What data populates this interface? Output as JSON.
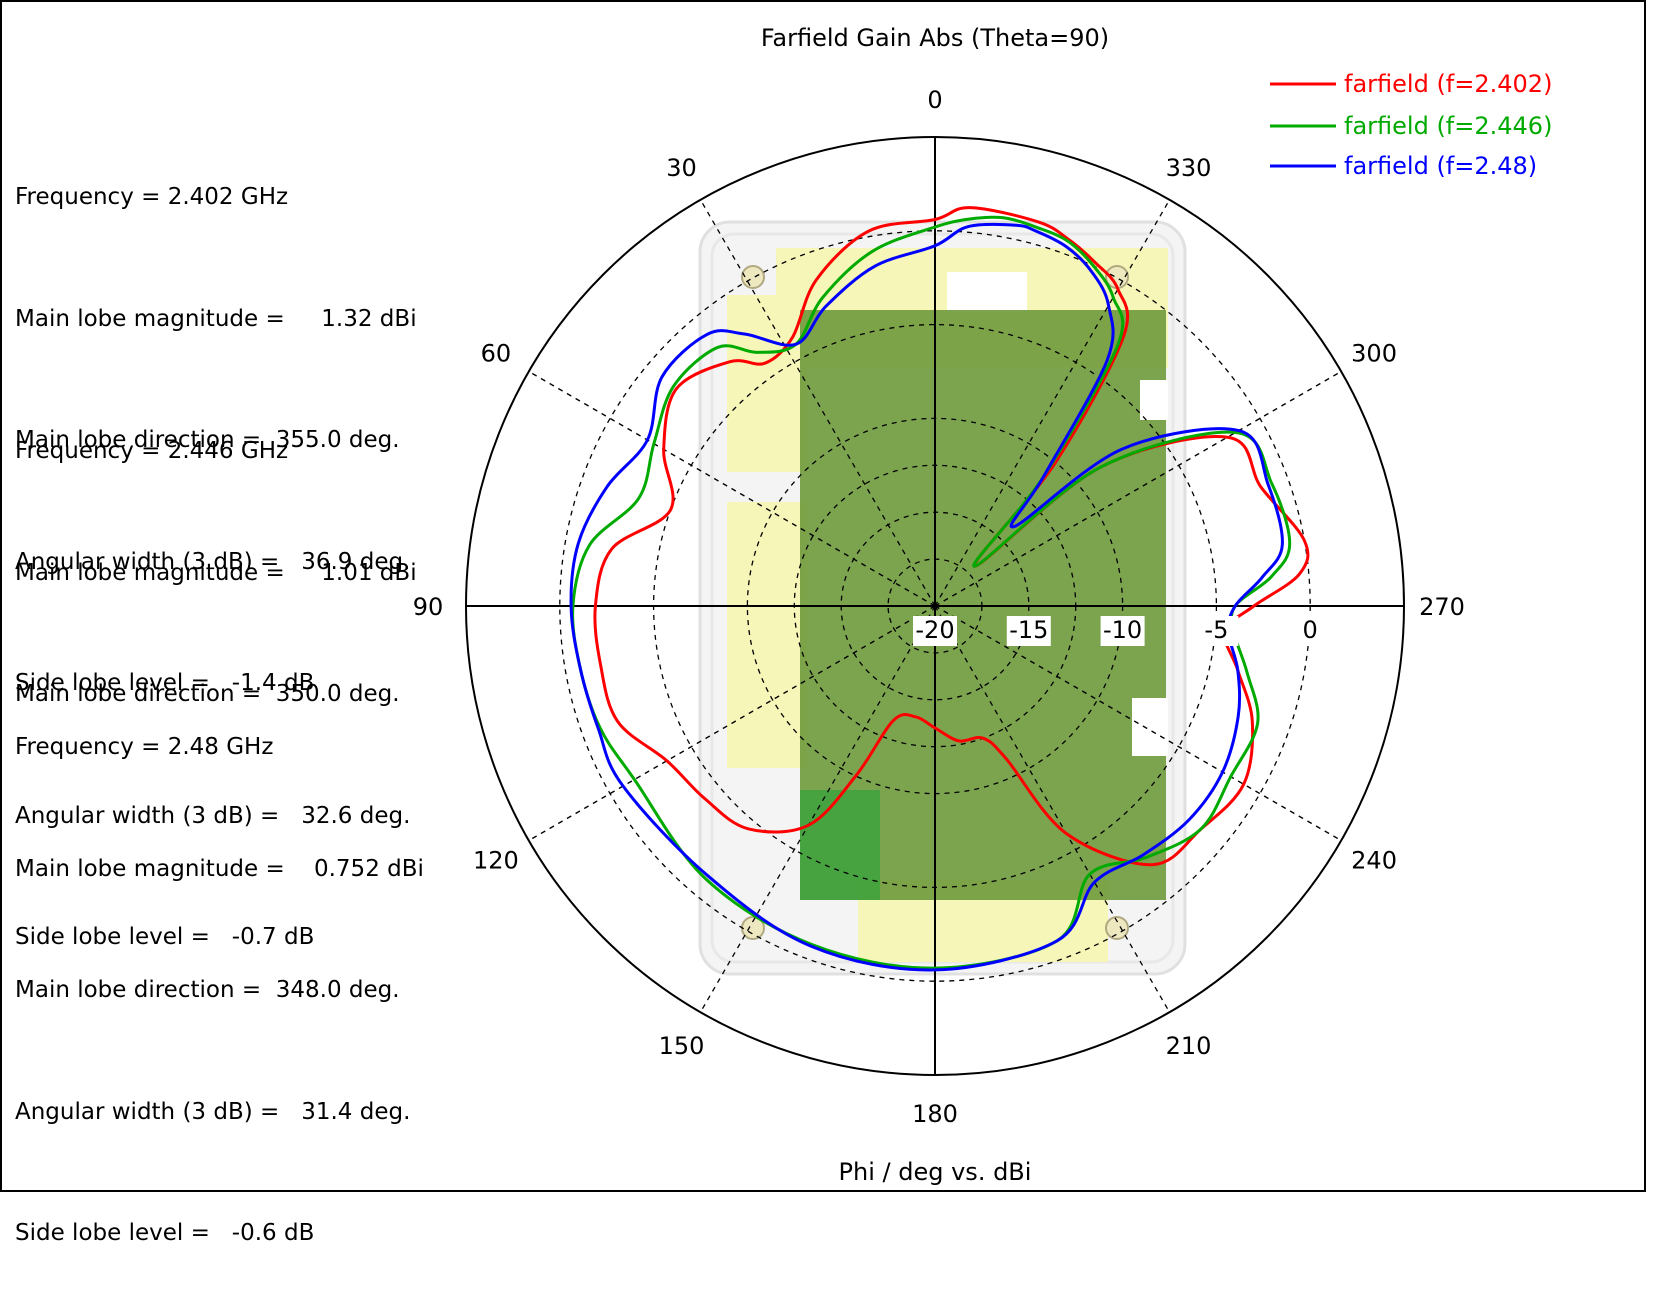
{
  "chart_data": {
    "type": "polar",
    "title": "Farfield Gain Abs (Theta=90)",
    "xlabel": "Phi / deg vs. dBi",
    "radial_range_dBi": [
      -20,
      5
    ],
    "radial_ticks": [
      "-20",
      "-15",
      "-10",
      "-5",
      "0"
    ],
    "angle_ticks": [
      "0",
      "30",
      "60",
      "90",
      "120",
      "150",
      "180",
      "210",
      "240",
      "270",
      "300",
      "330"
    ],
    "angle_direction": "counter-clockwise on screen, 0 at top",
    "grid": true,
    "legend_position": "top-right",
    "series": [
      {
        "name": "farfield (f=2.402)",
        "color": "#ff0000",
        "phi": [
          0,
          10,
          20,
          28,
          35,
          40,
          50,
          60,
          70,
          80,
          90,
          100,
          110,
          120,
          130,
          140,
          150,
          155,
          160,
          170,
          180,
          190,
          200,
          205,
          210,
          220,
          230,
          240,
          250,
          258,
          265,
          270,
          275,
          280,
          290,
          300,
          310,
          315,
          320,
          325,
          330,
          335,
          340,
          345,
          355
        ],
        "dBi": [
          0.6,
          0.3,
          -1.5,
          -3.8,
          -4.2,
          -3.0,
          -2.0,
          -3.3,
          -5.0,
          -2.5,
          -1.9,
          -1.9,
          -2.0,
          -3.5,
          -4.0,
          -4.5,
          -6.5,
          -10.0,
          -13.5,
          -14.0,
          -13.5,
          -12.7,
          -12.5,
          -11.0,
          -6.0,
          -2.0,
          -1.5,
          -1.0,
          -2.0,
          -3.5,
          -4.5,
          -3.0,
          -0.5,
          0.0,
          -1.5,
          -2.0,
          -8.5,
          -17.0,
          -10.0,
          -2.5,
          -0.5,
          0.2,
          0.8,
          1.2,
          1.32
        ]
      },
      {
        "name": "farfield (f=2.446)",
        "color": "#00aa00",
        "phi": [
          0,
          10,
          20,
          28,
          35,
          40,
          50,
          60,
          70,
          80,
          90,
          100,
          110,
          120,
          140,
          160,
          180,
          200,
          210,
          220,
          230,
          240,
          250,
          258,
          265,
          270,
          275,
          280,
          290,
          300,
          310,
          315,
          320,
          325,
          330,
          335,
          340,
          345,
          350,
          355
        ],
        "dBi": [
          0.2,
          -0.8,
          -2.5,
          -4.2,
          -3.5,
          -2.0,
          -1.8,
          -2.7,
          -3.2,
          -1.3,
          -0.7,
          -0.8,
          -1.0,
          -1.5,
          -1.0,
          -0.8,
          -0.7,
          -1.0,
          -3.5,
          -2.5,
          -1.5,
          -1.8,
          -1.7,
          -3.0,
          -4.0,
          -4.0,
          -2.0,
          -0.8,
          -0.9,
          -1.5,
          -8.5,
          -17.0,
          -11.0,
          -3.0,
          -1.0,
          0.0,
          0.7,
          0.9,
          1.01,
          0.7
        ]
      },
      {
        "name": "farfield (f=2.48)",
        "color": "#0000ff",
        "phi": [
          0,
          10,
          20,
          28,
          35,
          40,
          50,
          60,
          70,
          80,
          90,
          100,
          110,
          120,
          140,
          160,
          180,
          200,
          210,
          220,
          230,
          240,
          250,
          258,
          265,
          270,
          275,
          280,
          290,
          300,
          310,
          315,
          320,
          325,
          330,
          335,
          340,
          345,
          348,
          355
        ],
        "dBi": [
          -0.8,
          -1.6,
          -3.0,
          -4.2,
          -2.3,
          -1.1,
          -1.0,
          -2.3,
          -1.4,
          -0.7,
          -0.6,
          -0.8,
          -0.9,
          -0.8,
          -1.2,
          -0.7,
          -0.6,
          -1.0,
          -3.0,
          -2.7,
          -2.3,
          -2.3,
          -2.8,
          -3.5,
          -4.3,
          -4.0,
          -2.5,
          -1.2,
          -1.1,
          -1.3,
          -7.0,
          -14.0,
          -11.0,
          -4.0,
          -1.5,
          -0.3,
          0.4,
          0.7,
          0.752,
          0.3
        ]
      }
    ]
  },
  "annotations": [
    {
      "frequency": "Frequency = 2.402 GHz",
      "magnitude": "Main lobe magnitude =     1.32 dBi",
      "direction": "Main lobe direction =  355.0 deg.",
      "width": "Angular width (3 dB) =   36.9 deg.",
      "sidelobe": "Side lobe level =   -1.4 dB"
    },
    {
      "frequency": "Frequency = 2.446 GHz",
      "magnitude": "Main lobe magnitude =     1.01 dBi",
      "direction": "Main lobe direction =  350.0 deg.",
      "width": "Angular width (3 dB) =   32.6 deg.",
      "sidelobe": "Side lobe level =   -0.7 dB"
    },
    {
      "frequency": "Frequency = 2.48 GHz",
      "magnitude": "Main lobe magnitude =    0.752 dBi",
      "direction": "Main lobe direction =  348.0 deg.",
      "width": "Angular width (3 dB) =   31.4 deg.",
      "sidelobe": "Side lobe level =   -0.6 dB"
    }
  ],
  "colors": {
    "board_yellow": "#f6f6b8",
    "board_green": "#6f9a3c",
    "grid": "#000000"
  }
}
